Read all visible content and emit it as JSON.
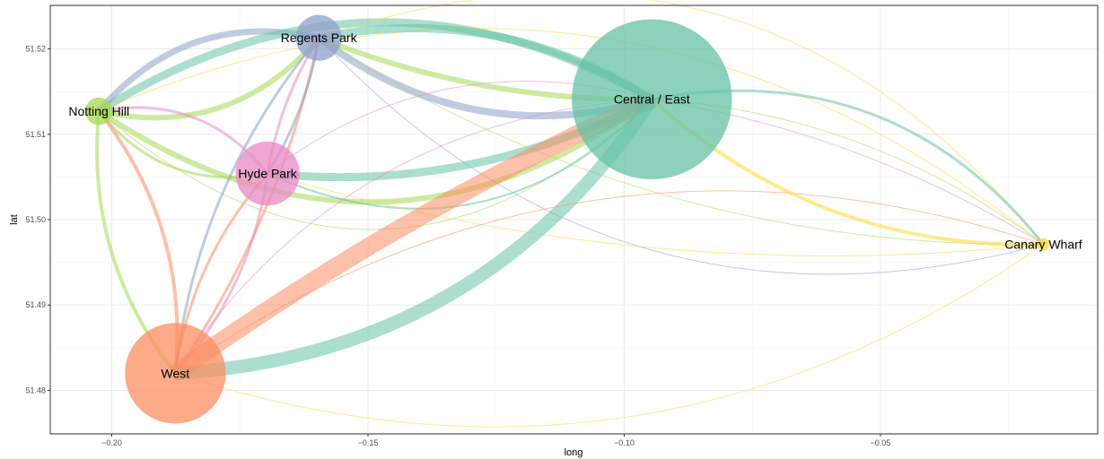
{
  "chart_data": {
    "type": "network",
    "xlabel": "long",
    "ylabel": "lat",
    "xlim": [
      -0.212,
      -0.0076
    ],
    "ylim": [
      51.4749,
      51.5251
    ],
    "x_ticks": [
      -0.2,
      -0.15,
      -0.1,
      -0.05
    ],
    "x_tick_labels": [
      "−0.20",
      "−0.15",
      "−0.10",
      "−0.05"
    ],
    "y_ticks": [
      51.48,
      51.49,
      51.5,
      51.51,
      51.52
    ],
    "y_tick_labels": [
      "51.48",
      "51.49",
      "51.50",
      "51.51",
      "51.52"
    ],
    "grid": true,
    "nodes": [
      {
        "name": "Regents Park",
        "long": -0.1596,
        "lat": 51.5213,
        "size": 30,
        "color": "#8DA0CB"
      },
      {
        "name": "Notting Hill",
        "long": -0.2025,
        "lat": 51.5127,
        "size": 18,
        "color": "#A6D854"
      },
      {
        "name": "Central / East",
        "long": -0.0946,
        "lat": 51.5141,
        "size": 105,
        "color": "#66C2A5"
      },
      {
        "name": "Hyde Park",
        "long": -0.1696,
        "lat": 51.5054,
        "size": 42,
        "color": "#E78AC3"
      },
      {
        "name": "West",
        "long": -0.1876,
        "lat": 51.482,
        "size": 66,
        "color": "#FC8D62"
      },
      {
        "name": "Canary Wharf",
        "long": -0.0182,
        "lat": 51.4971,
        "size": 8,
        "color": "#FFD92F"
      }
    ],
    "edges": [
      {
        "from": "Notting Hill",
        "to": "Regents Park",
        "width": 6,
        "color": "#A6D854",
        "curve": 0.3
      },
      {
        "from": "Notting Hill",
        "to": "Regents Park",
        "width": 7,
        "color": "#8DA0CB",
        "curve": -0.3
      },
      {
        "from": "Notting Hill",
        "to": "Central / East",
        "width": 6,
        "color": "#A6D854",
        "curve": 0.35
      },
      {
        "from": "Notting Hill",
        "to": "Central / East",
        "width": 1,
        "color": "#A6D854",
        "curve": 0.45
      },
      {
        "from": "Notting Hill",
        "to": "Central / East",
        "width": 9,
        "color": "#66C2A5",
        "curve": -0.3
      },
      {
        "from": "Notting Hill",
        "to": "Hyde Park",
        "width": 3,
        "color": "#A6D854",
        "curve": 0.3
      },
      {
        "from": "Notting Hill",
        "to": "Hyde Park",
        "width": 3,
        "color": "#E78AC3",
        "curve": -0.3
      },
      {
        "from": "Notting Hill",
        "to": "West",
        "width": 4,
        "color": "#A6D854",
        "curve": 0.2
      },
      {
        "from": "Notting Hill",
        "to": "West",
        "width": 4,
        "color": "#FC8D62",
        "curve": -0.2
      },
      {
        "from": "Notting Hill",
        "to": "Canary Wharf",
        "width": 1,
        "color": "#FFD92F",
        "curve": -0.3
      },
      {
        "from": "Regents Park",
        "to": "Central / East",
        "width": 8,
        "color": "#8DA0CB",
        "curve": 0.25
      },
      {
        "from": "Regents Park",
        "to": "Central / East",
        "width": 6,
        "color": "#A6D854",
        "curve": 0.1
      },
      {
        "from": "Regents Park",
        "to": "Central / East",
        "width": 9,
        "color": "#66C2A5",
        "curve": -0.2
      },
      {
        "from": "Regents Park",
        "to": "Canary Wharf",
        "width": 1,
        "color": "#8DA0CB",
        "curve": 0.3
      },
      {
        "from": "Regents Park",
        "to": "Canary Wharf",
        "width": 1,
        "color": "#A6D854",
        "curve": 0.15
      },
      {
        "from": "Regents Park",
        "to": "Canary Wharf",
        "width": 1,
        "color": "#FFD92F",
        "curve": -0.35
      },
      {
        "from": "Regents Park",
        "to": "West",
        "width": 3,
        "color": "#8DA0CB",
        "curve": 0.15
      },
      {
        "from": "Regents Park",
        "to": "West",
        "width": 3,
        "color": "#FC8D62",
        "curve": -0.1
      },
      {
        "from": "Hyde Park",
        "to": "Regents Park",
        "width": 3,
        "color": "#8DA0CB",
        "curve": 0.1
      },
      {
        "from": "Hyde Park",
        "to": "Regents Park",
        "width": 3,
        "color": "#E78AC3",
        "curve": -0.1
      },
      {
        "from": "Hyde Park",
        "to": "Central / East",
        "width": 9,
        "color": "#66C2A5",
        "curve": 0.15
      },
      {
        "from": "Hyde Park",
        "to": "Central / East",
        "width": 1,
        "color": "#E78AC3",
        "curve": -0.25
      },
      {
        "from": "Hyde Park",
        "to": "Central / East",
        "width": 2,
        "color": "#66C2A5",
        "curve": 0.35
      },
      {
        "from": "Hyde Park",
        "to": "Canary Wharf",
        "width": 1,
        "color": "#FFD92F",
        "curve": 0.1
      },
      {
        "from": "West",
        "to": "Hyde Park",
        "width": 3,
        "color": "#FC8D62",
        "curve": -0.15
      },
      {
        "from": "West",
        "to": "Hyde Park",
        "width": 3,
        "color": "#E78AC3",
        "curve": 0.15
      },
      {
        "from": "West",
        "to": "Central / East",
        "width": 20,
        "color": "#FC8D62",
        "curve": -0.05
      },
      {
        "from": "West",
        "to": "Central / East",
        "width": 15,
        "color": "#66C2A5",
        "curve": 0.25
      },
      {
        "from": "West",
        "to": "Central / East",
        "width": 1,
        "color": "#E78AC3",
        "curve": -0.25
      },
      {
        "from": "West",
        "to": "Canary Wharf",
        "width": 1,
        "color": "#FC8D62",
        "curve": -0.25
      },
      {
        "from": "West",
        "to": "Canary Wharf",
        "width": 1,
        "color": "#FFD92F",
        "curve": 0.25
      },
      {
        "from": "Central / East",
        "to": "Canary Wharf",
        "width": 3,
        "color": "#66C2A5",
        "curve": -0.3
      },
      {
        "from": "Central / East",
        "to": "Canary Wharf",
        "width": 4,
        "color": "#FFD92F",
        "curve": 0.2
      },
      {
        "from": "Central / East",
        "to": "Canary Wharf",
        "width": 1,
        "color": "#A6D854",
        "curve": -0.15
      },
      {
        "from": "Central / East",
        "to": "Canary Wharf",
        "width": 1,
        "color": "#E78AC3",
        "curve": -0.1
      }
    ]
  }
}
